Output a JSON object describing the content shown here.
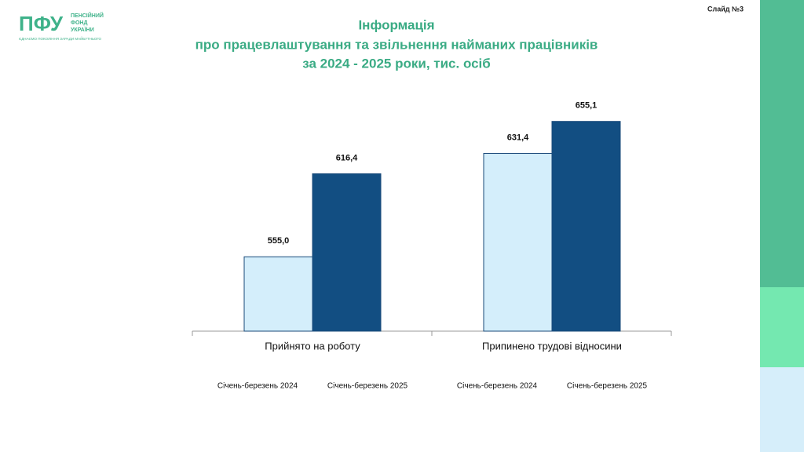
{
  "slide": "Слайд №3",
  "logo": {
    "mark": "ПФУ",
    "name": [
      "ПЕНСІЙНИЙ",
      "ФОНД",
      "УКРАЇНИ"
    ],
    "tagline": "ЄДНАЄМО ПОКОЛІННЯ ЗАРАДИ МАЙБУТНЬОГО"
  },
  "chart_data": {
    "type": "bar",
    "title": [
      "Інформація",
      "про працевлаштування та звільнення найманих працівників",
      "за 2024 - 2025  роки,  тис. осіб"
    ],
    "categories": [
      "Прийнято на роботу",
      "Припинено трудові відносини"
    ],
    "series": [
      {
        "name": "Січень-березень 2024",
        "color": "#d4eefb",
        "values": [
          555.0,
          631.4
        ],
        "value_labels": [
          "555,0",
          "631,4"
        ]
      },
      {
        "name": "Січень-березень 2025",
        "color": "#124e82",
        "values": [
          616.4,
          655.1
        ],
        "value_labels": [
          "616,4",
          "655,1"
        ]
      }
    ],
    "ylim": [
      500,
      670
    ]
  }
}
